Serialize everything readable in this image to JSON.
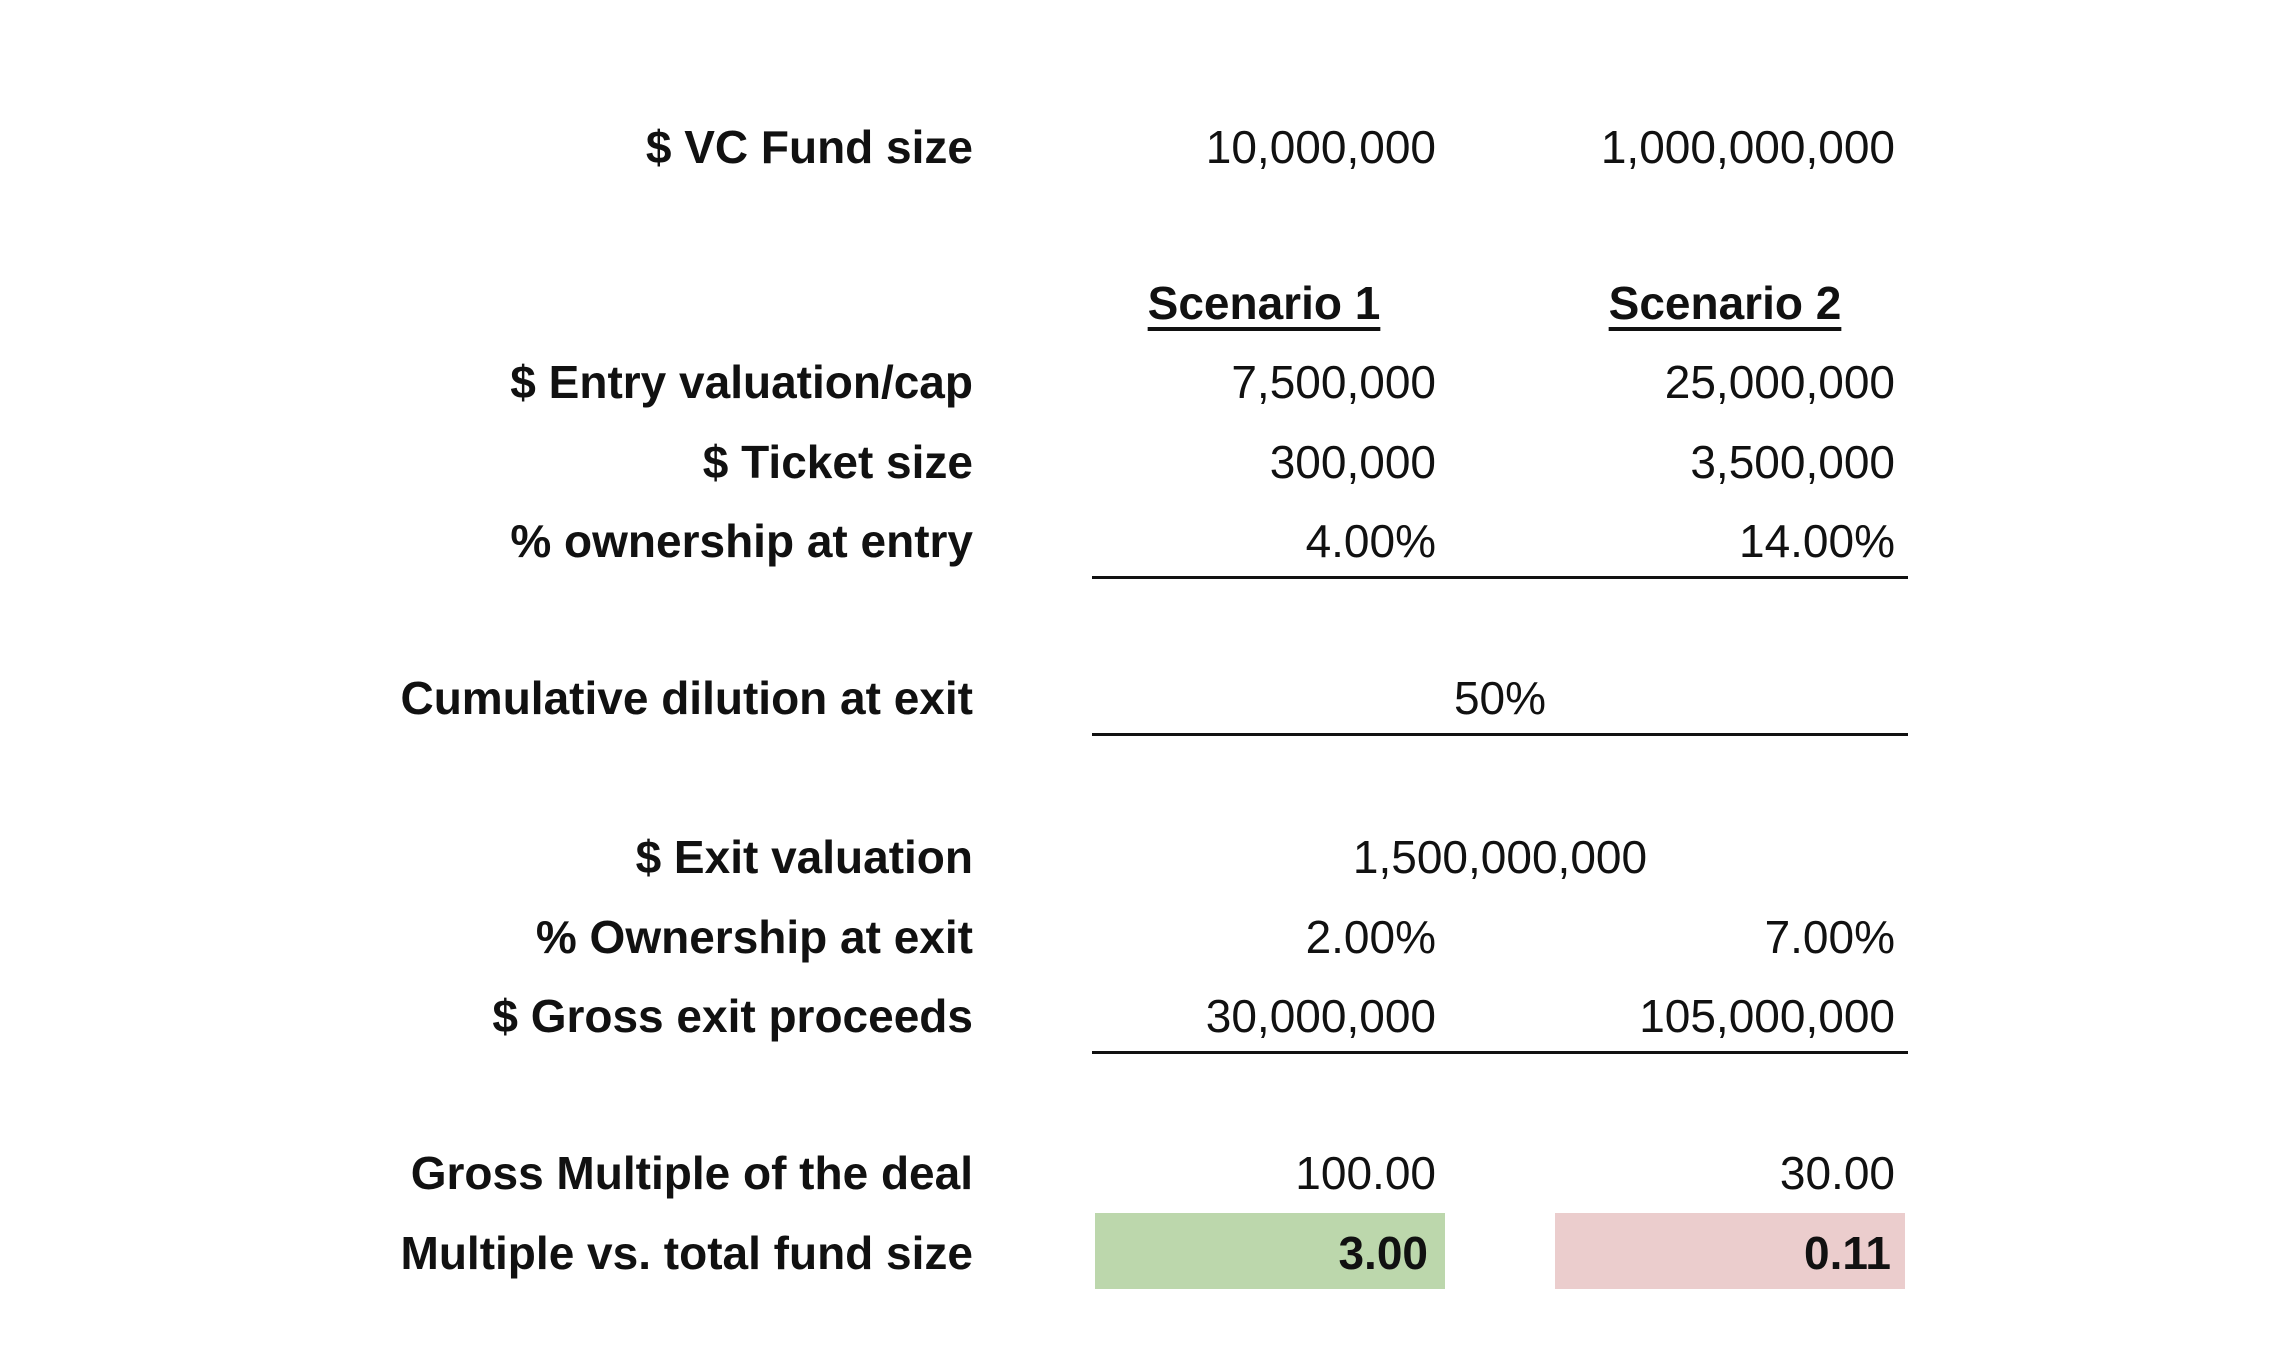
{
  "fund_size": {
    "label": "$ VC Fund size",
    "values": [
      "10,000,000",
      "1,000,000,000"
    ]
  },
  "headers": [
    "Scenario 1",
    "Scenario 2"
  ],
  "rows": [
    {
      "label": "$ Entry valuation/cap",
      "values": [
        "7,500,000",
        "25,000,000"
      ]
    },
    {
      "label": "$ Ticket size",
      "values": [
        "300,000",
        "3,500,000"
      ]
    },
    {
      "label": "% ownership at entry",
      "values": [
        "4.00%",
        "14.00%"
      ]
    },
    {
      "label": "Cumulative dilution at exit",
      "value": "50%"
    },
    {
      "label": "$ Exit valuation",
      "value": "1,500,000,000"
    },
    {
      "label": "% Ownership at exit",
      "values": [
        "2.00%",
        "7.00%"
      ]
    },
    {
      "label": "$ Gross exit proceeds",
      "values": [
        "30,000,000",
        "105,000,000"
      ]
    },
    {
      "label": "Gross Multiple of the deal",
      "values": [
        "100.00",
        "30.00"
      ]
    },
    {
      "label": "Multiple vs. total fund size",
      "values": [
        "3.00",
        "0.11"
      ]
    }
  ]
}
